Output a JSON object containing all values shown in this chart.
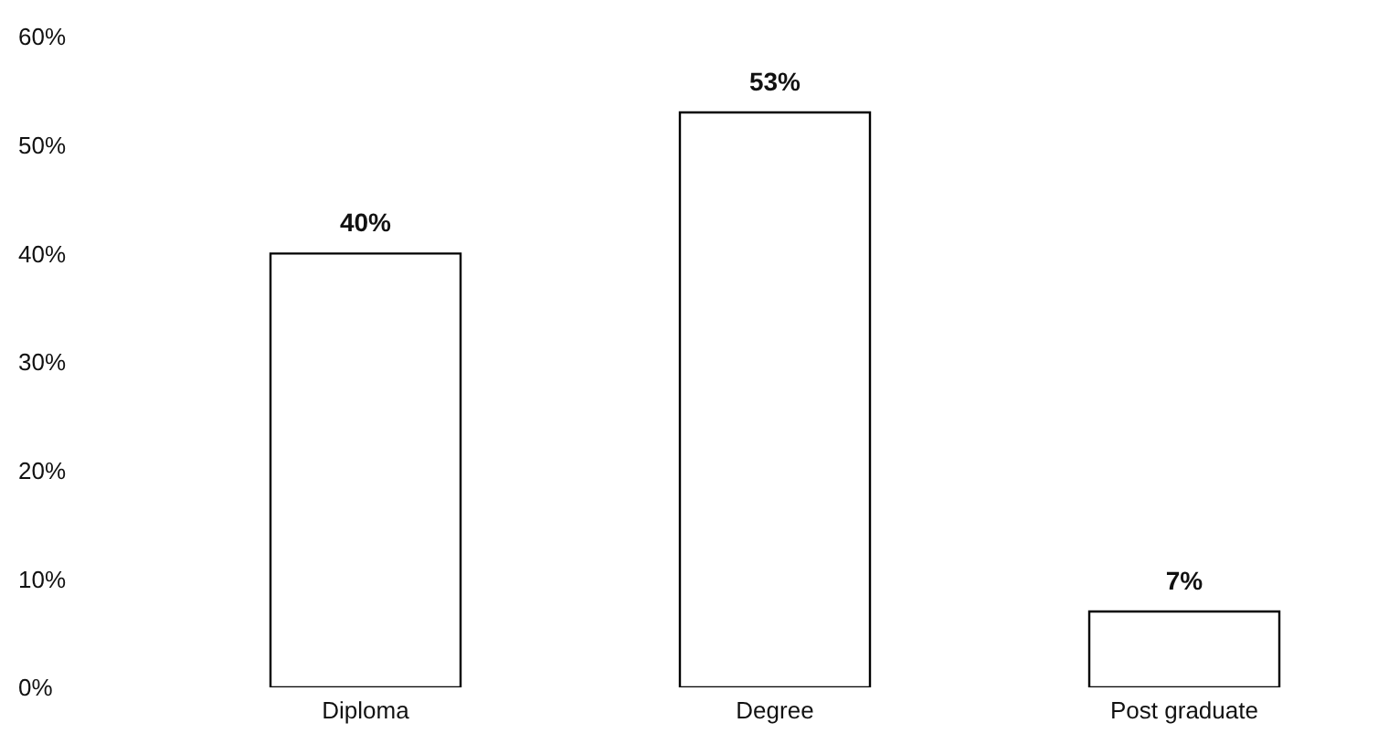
{
  "chart_data": {
    "type": "bar",
    "categories": [
      "Diploma",
      "Degree",
      "Post graduate"
    ],
    "values": [
      40,
      53,
      7
    ],
    "color": "#ffffff",
    "ylim": [
      0,
      60
    ],
    "yticks": [
      {
        "value": 0,
        "label": "0%"
      },
      {
        "value": 10,
        "label": "10%"
      },
      {
        "value": 20,
        "label": "20%"
      },
      {
        "value": 30,
        "label": "30%"
      },
      {
        "value": 40,
        "label": "40%"
      },
      {
        "value": 50,
        "label": "50%"
      },
      {
        "value": 60,
        "label": "60%"
      }
    ],
    "value_labels": [
      "40%",
      "53%",
      "7%"
    ],
    "grid": false
  }
}
